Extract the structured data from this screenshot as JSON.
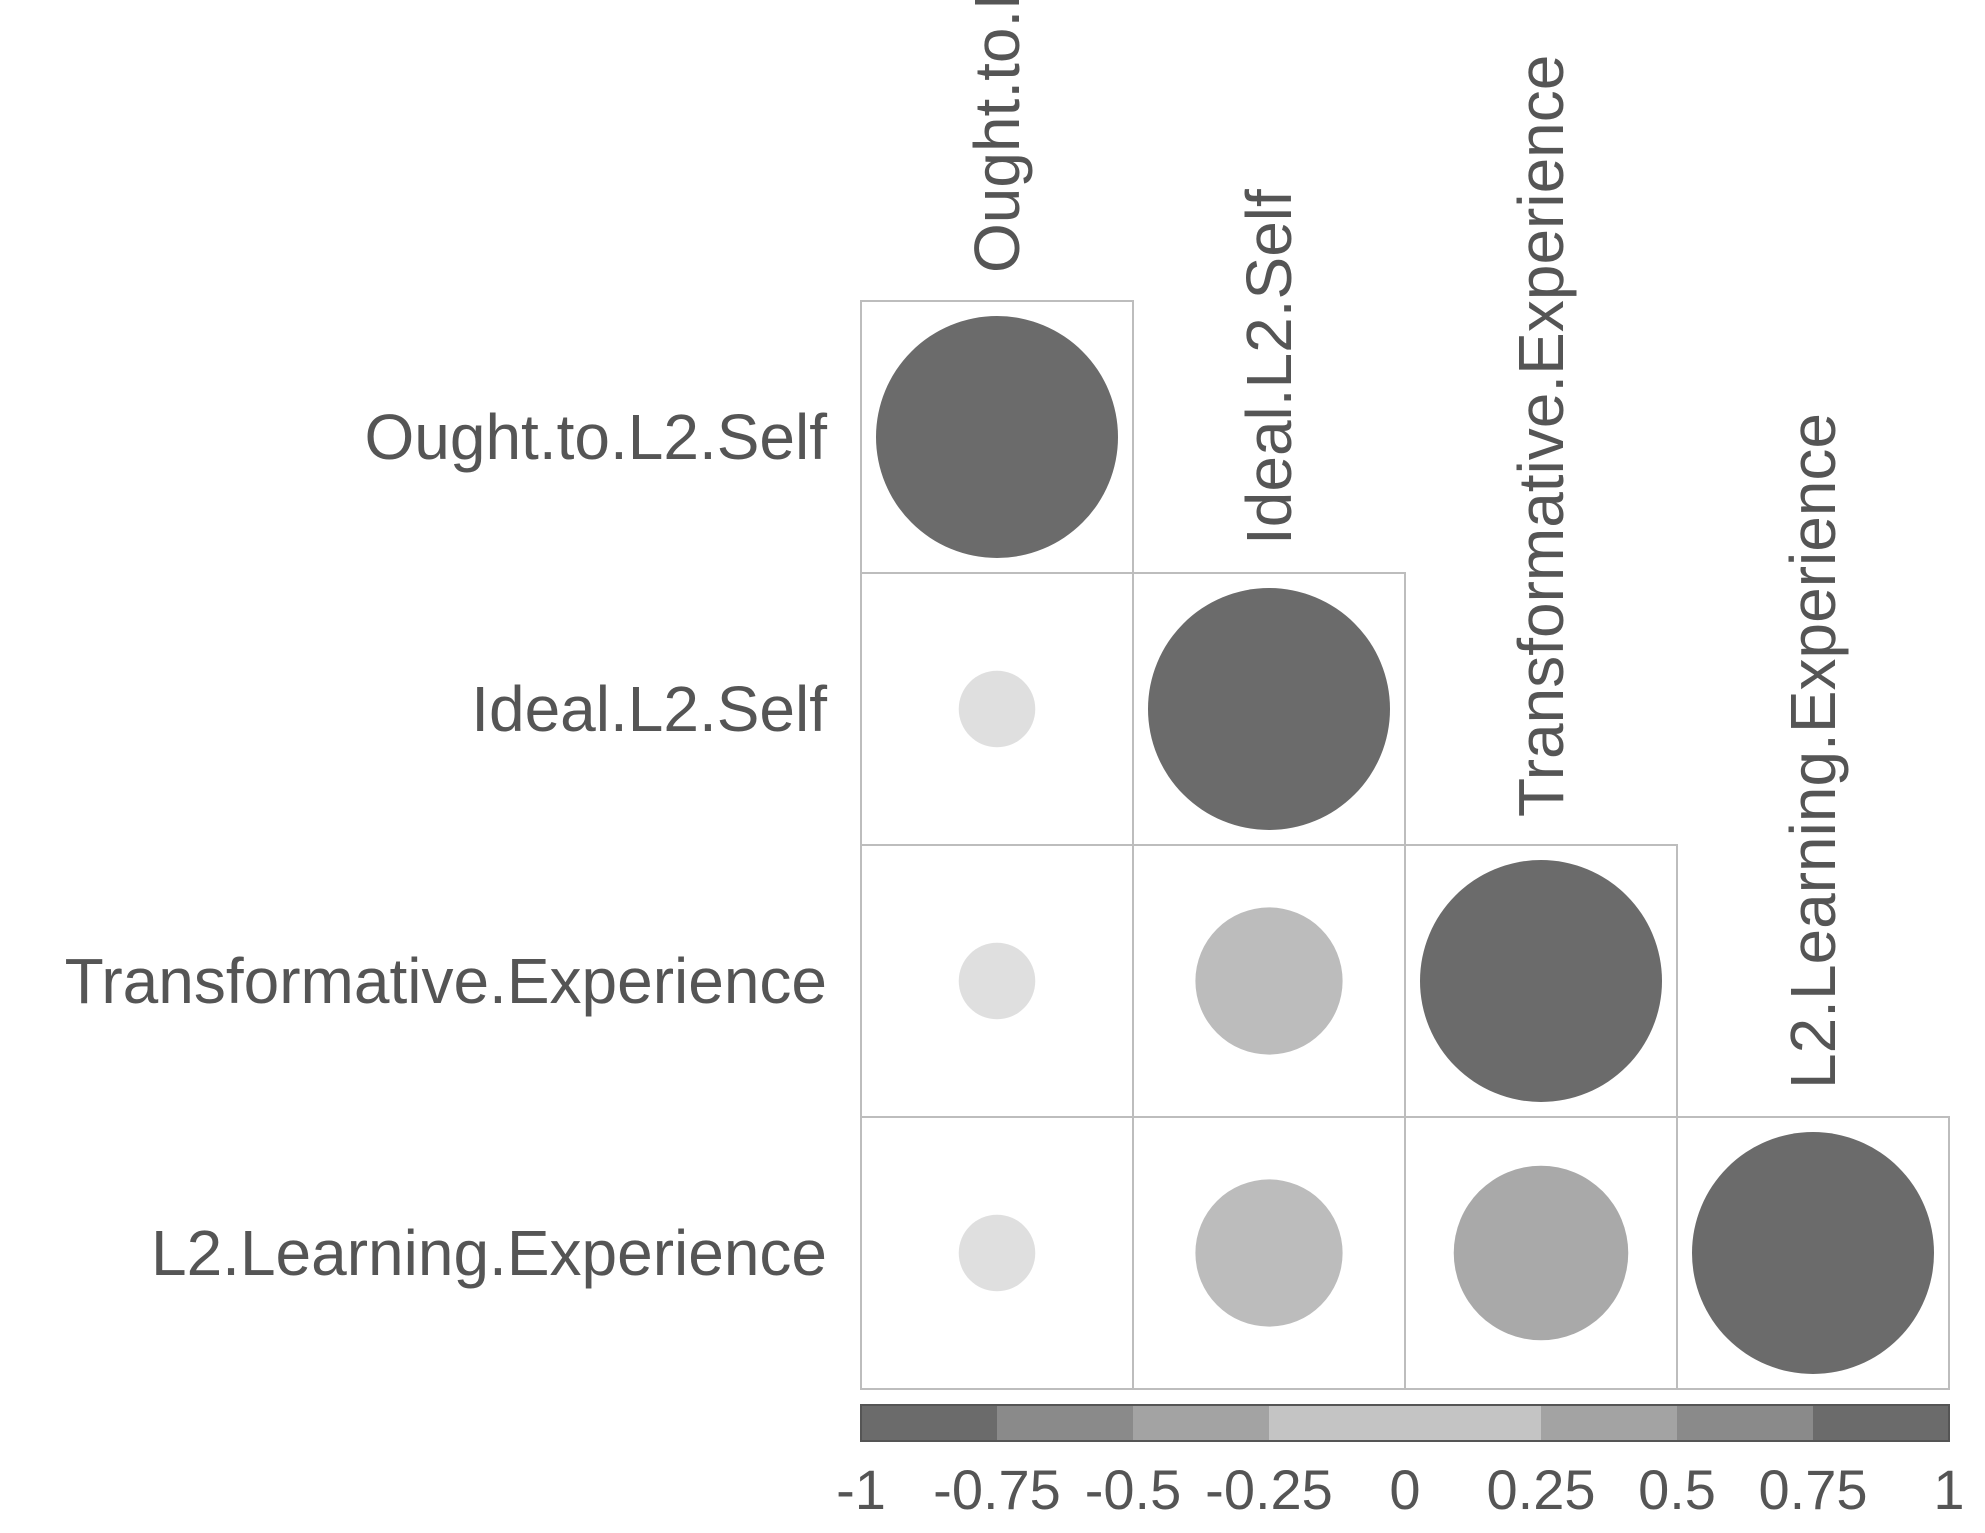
{
  "chart_data": {
    "type": "heatmap",
    "variables": [
      "Ought.to.L2.Self",
      "Ideal.L2.Self",
      "Transformative.Experience",
      "L2.Learning.Experience"
    ],
    "matrix_lower": [
      [
        1.0
      ],
      [
        0.1,
        1.0
      ],
      [
        0.1,
        0.37,
        1.0
      ],
      [
        0.1,
        0.37,
        0.52,
        1.0
      ]
    ],
    "value_range": [
      -1,
      1
    ],
    "colorbar": {
      "ticks": [
        "-1",
        "-0.75",
        "-0.5",
        "-0.25",
        "0",
        "0.25",
        "0.5",
        "0.75",
        "1"
      ],
      "colors": [
        "#6b6b6b",
        "#8a8a8a",
        "#a3a3a3",
        "#c4c4c4",
        "#ececec",
        "#c4c4c4",
        "#a3a3a3",
        "#8a8a8a",
        "#6b6b6b"
      ],
      "placement": "bottom"
    },
    "title": ""
  }
}
